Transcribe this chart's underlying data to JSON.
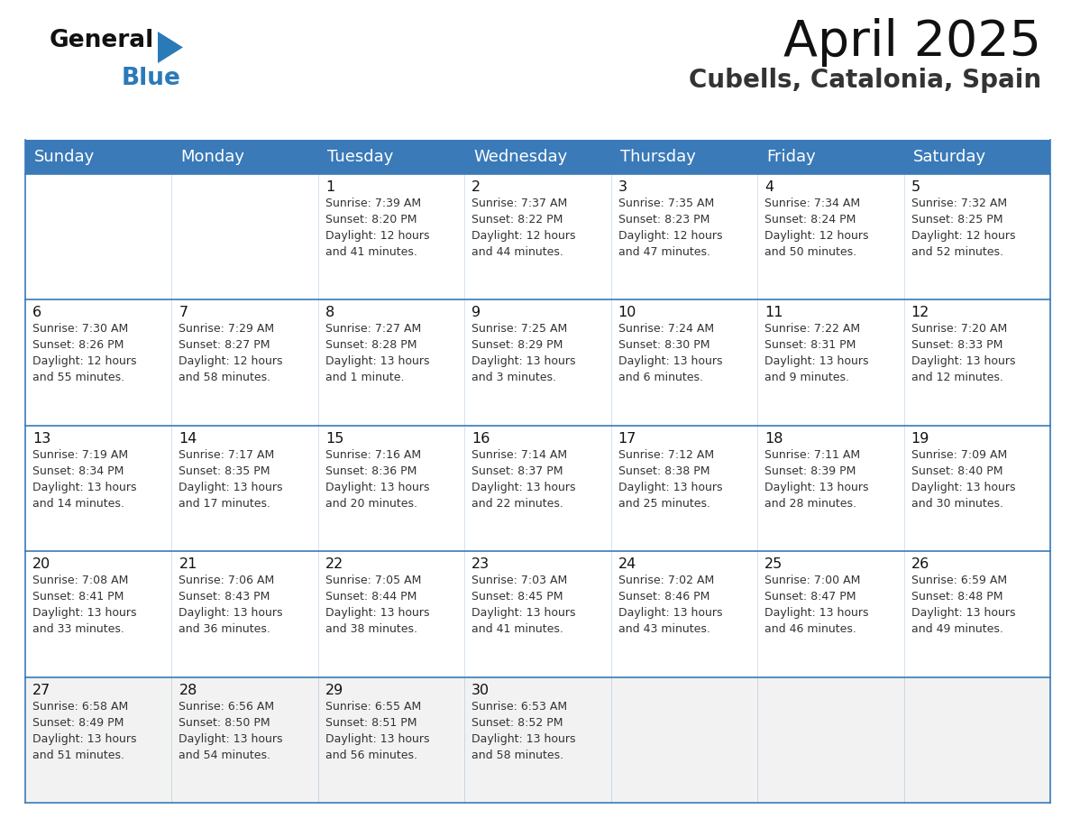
{
  "title": "April 2025",
  "subtitle": "Cubells, Catalonia, Spain",
  "header_bg_color": "#3a7ab8",
  "header_text_color": "#ffffff",
  "weekdays": [
    "Sunday",
    "Monday",
    "Tuesday",
    "Wednesday",
    "Thursday",
    "Friday",
    "Saturday"
  ],
  "cell_bg_white": "#ffffff",
  "cell_bg_light": "#f2f2f2",
  "row_border_color": "#3a7ab8",
  "day_text_color": "#111111",
  "info_text_color": "#333333",
  "title_color": "#111111",
  "subtitle_color": "#333333",
  "logo_general_color": "#111111",
  "logo_blue_color": "#2b7ab8",
  "days": [
    {
      "day": null,
      "col": 0,
      "row": 0
    },
    {
      "day": null,
      "col": 1,
      "row": 0
    },
    {
      "day": 1,
      "col": 2,
      "row": 0,
      "sunrise": "7:39 AM",
      "sunset": "8:20 PM",
      "daylight": "12 hours\nand 41 minutes."
    },
    {
      "day": 2,
      "col": 3,
      "row": 0,
      "sunrise": "7:37 AM",
      "sunset": "8:22 PM",
      "daylight": "12 hours\nand 44 minutes."
    },
    {
      "day": 3,
      "col": 4,
      "row": 0,
      "sunrise": "7:35 AM",
      "sunset": "8:23 PM",
      "daylight": "12 hours\nand 47 minutes."
    },
    {
      "day": 4,
      "col": 5,
      "row": 0,
      "sunrise": "7:34 AM",
      "sunset": "8:24 PM",
      "daylight": "12 hours\nand 50 minutes."
    },
    {
      "day": 5,
      "col": 6,
      "row": 0,
      "sunrise": "7:32 AM",
      "sunset": "8:25 PM",
      "daylight": "12 hours\nand 52 minutes."
    },
    {
      "day": 6,
      "col": 0,
      "row": 1,
      "sunrise": "7:30 AM",
      "sunset": "8:26 PM",
      "daylight": "12 hours\nand 55 minutes."
    },
    {
      "day": 7,
      "col": 1,
      "row": 1,
      "sunrise": "7:29 AM",
      "sunset": "8:27 PM",
      "daylight": "12 hours\nand 58 minutes."
    },
    {
      "day": 8,
      "col": 2,
      "row": 1,
      "sunrise": "7:27 AM",
      "sunset": "8:28 PM",
      "daylight": "13 hours\nand 1 minute."
    },
    {
      "day": 9,
      "col": 3,
      "row": 1,
      "sunrise": "7:25 AM",
      "sunset": "8:29 PM",
      "daylight": "13 hours\nand 3 minutes."
    },
    {
      "day": 10,
      "col": 4,
      "row": 1,
      "sunrise": "7:24 AM",
      "sunset": "8:30 PM",
      "daylight": "13 hours\nand 6 minutes."
    },
    {
      "day": 11,
      "col": 5,
      "row": 1,
      "sunrise": "7:22 AM",
      "sunset": "8:31 PM",
      "daylight": "13 hours\nand 9 minutes."
    },
    {
      "day": 12,
      "col": 6,
      "row": 1,
      "sunrise": "7:20 AM",
      "sunset": "8:33 PM",
      "daylight": "13 hours\nand 12 minutes."
    },
    {
      "day": 13,
      "col": 0,
      "row": 2,
      "sunrise": "7:19 AM",
      "sunset": "8:34 PM",
      "daylight": "13 hours\nand 14 minutes."
    },
    {
      "day": 14,
      "col": 1,
      "row": 2,
      "sunrise": "7:17 AM",
      "sunset": "8:35 PM",
      "daylight": "13 hours\nand 17 minutes."
    },
    {
      "day": 15,
      "col": 2,
      "row": 2,
      "sunrise": "7:16 AM",
      "sunset": "8:36 PM",
      "daylight": "13 hours\nand 20 minutes."
    },
    {
      "day": 16,
      "col": 3,
      "row": 2,
      "sunrise": "7:14 AM",
      "sunset": "8:37 PM",
      "daylight": "13 hours\nand 22 minutes."
    },
    {
      "day": 17,
      "col": 4,
      "row": 2,
      "sunrise": "7:12 AM",
      "sunset": "8:38 PM",
      "daylight": "13 hours\nand 25 minutes."
    },
    {
      "day": 18,
      "col": 5,
      "row": 2,
      "sunrise": "7:11 AM",
      "sunset": "8:39 PM",
      "daylight": "13 hours\nand 28 minutes."
    },
    {
      "day": 19,
      "col": 6,
      "row": 2,
      "sunrise": "7:09 AM",
      "sunset": "8:40 PM",
      "daylight": "13 hours\nand 30 minutes."
    },
    {
      "day": 20,
      "col": 0,
      "row": 3,
      "sunrise": "7:08 AM",
      "sunset": "8:41 PM",
      "daylight": "13 hours\nand 33 minutes."
    },
    {
      "day": 21,
      "col": 1,
      "row": 3,
      "sunrise": "7:06 AM",
      "sunset": "8:43 PM",
      "daylight": "13 hours\nand 36 minutes."
    },
    {
      "day": 22,
      "col": 2,
      "row": 3,
      "sunrise": "7:05 AM",
      "sunset": "8:44 PM",
      "daylight": "13 hours\nand 38 minutes."
    },
    {
      "day": 23,
      "col": 3,
      "row": 3,
      "sunrise": "7:03 AM",
      "sunset": "8:45 PM",
      "daylight": "13 hours\nand 41 minutes."
    },
    {
      "day": 24,
      "col": 4,
      "row": 3,
      "sunrise": "7:02 AM",
      "sunset": "8:46 PM",
      "daylight": "13 hours\nand 43 minutes."
    },
    {
      "day": 25,
      "col": 5,
      "row": 3,
      "sunrise": "7:00 AM",
      "sunset": "8:47 PM",
      "daylight": "13 hours\nand 46 minutes."
    },
    {
      "day": 26,
      "col": 6,
      "row": 3,
      "sunrise": "6:59 AM",
      "sunset": "8:48 PM",
      "daylight": "13 hours\nand 49 minutes."
    },
    {
      "day": 27,
      "col": 0,
      "row": 4,
      "sunrise": "6:58 AM",
      "sunset": "8:49 PM",
      "daylight": "13 hours\nand 51 minutes."
    },
    {
      "day": 28,
      "col": 1,
      "row": 4,
      "sunrise": "6:56 AM",
      "sunset": "8:50 PM",
      "daylight": "13 hours\nand 54 minutes."
    },
    {
      "day": 29,
      "col": 2,
      "row": 4,
      "sunrise": "6:55 AM",
      "sunset": "8:51 PM",
      "daylight": "13 hours\nand 56 minutes."
    },
    {
      "day": 30,
      "col": 3,
      "row": 4,
      "sunrise": "6:53 AM",
      "sunset": "8:52 PM",
      "daylight": "13 hours\nand 58 minutes."
    },
    {
      "day": null,
      "col": 4,
      "row": 4
    },
    {
      "day": null,
      "col": 5,
      "row": 4
    },
    {
      "day": null,
      "col": 6,
      "row": 4
    }
  ]
}
